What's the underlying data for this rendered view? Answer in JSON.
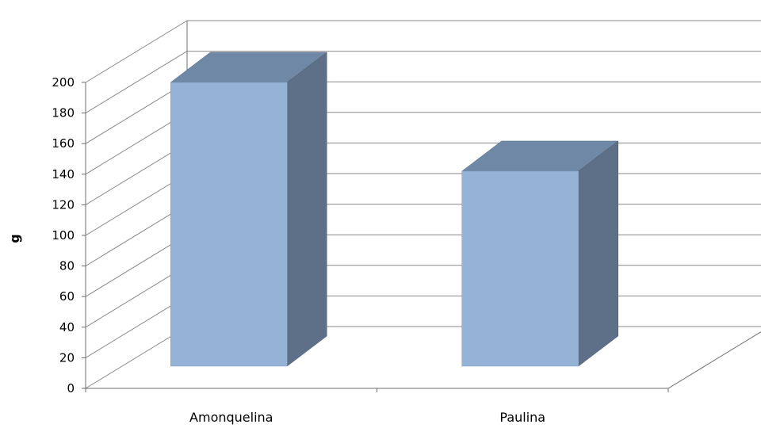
{
  "chart_data": {
    "type": "bar",
    "title": "",
    "xlabel": "",
    "ylabel": "g",
    "categories": [
      "Amonquelina",
      "Paulina"
    ],
    "values": [
      200,
      142
    ],
    "ylim": [
      0,
      200
    ],
    "yticks": [
      0,
      20,
      40,
      60,
      80,
      100,
      120,
      140,
      160,
      180,
      200
    ],
    "grid": true,
    "legend": "none",
    "three_d": true,
    "colors": {
      "bar_front": "#95b3d7",
      "bar_top": "#6e88a6",
      "bar_side": "#5d7088",
      "grid": "#8a8a8a"
    }
  }
}
